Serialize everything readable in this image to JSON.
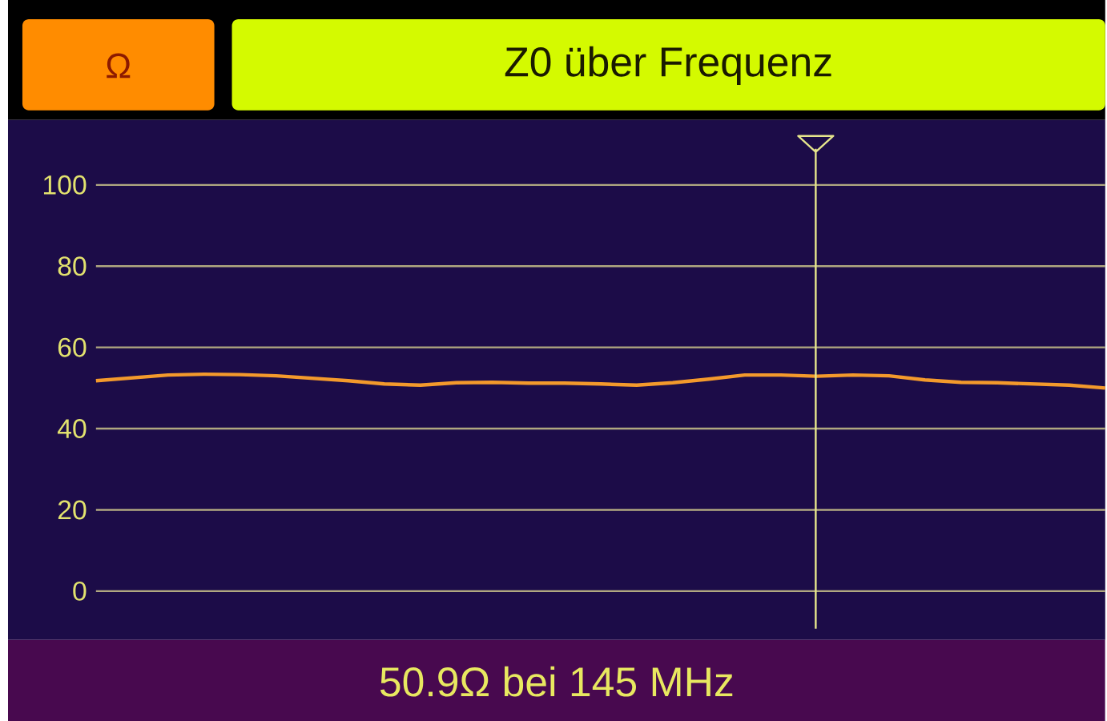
{
  "chart_data": {
    "type": "line",
    "title": "Z0 über Frequenz",
    "annotations": [
      "Ω",
      "50.9Ω bei 145 MHz"
    ],
    "categories": [
      null,
      null,
      null,
      null,
      null,
      null,
      null,
      null,
      null,
      null,
      null,
      null,
      null,
      null,
      null,
      null,
      null,
      null,
      null,
      null,
      null,
      null,
      null,
      null,
      null,
      null,
      null,
      null,
      null
    ],
    "series": [
      {
        "color": "#f39a2c",
        "values": [
          51.8,
          52.5,
          53.2,
          53.4,
          53.3,
          53.0,
          52.4,
          51.8,
          51.0,
          50.7,
          51.3,
          51.4,
          51.2,
          51.2,
          51.0,
          50.7,
          51.3,
          52.2,
          53.2,
          53.2,
          52.9,
          53.2,
          53.0,
          52.0,
          51.4,
          51.3,
          51.0,
          50.7,
          50.0
        ]
      }
    ],
    "ylim": [
      -12,
      116
    ],
    "yticks": [
      0,
      20,
      40,
      60,
      80,
      100
    ],
    "grid": "y",
    "tick_labels": "y",
    "marker": "none",
    "line_style": "solid"
  }
}
